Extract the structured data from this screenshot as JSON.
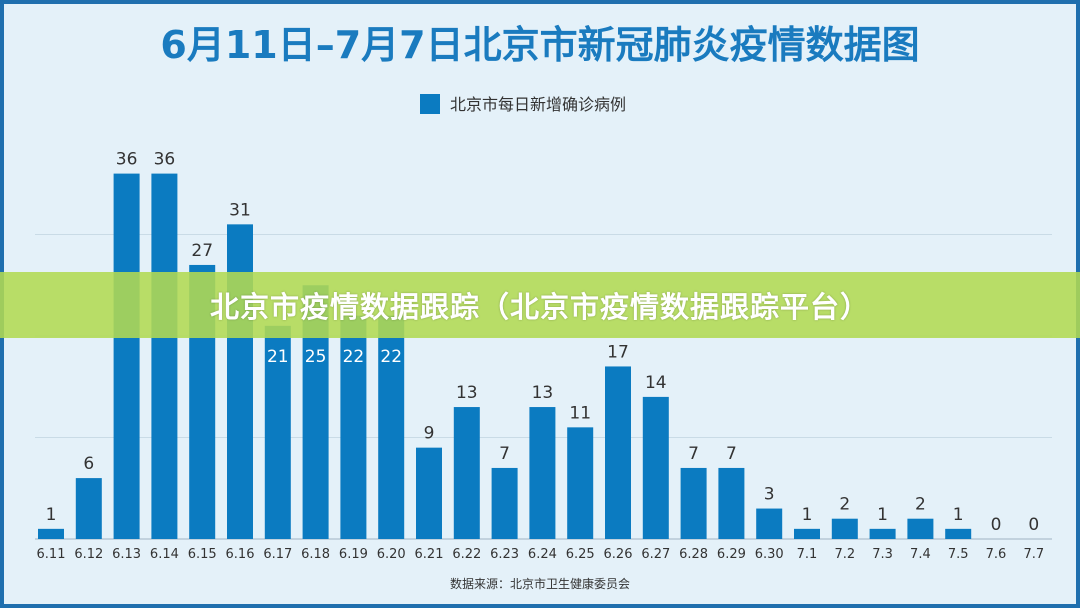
{
  "chart_data": {
    "type": "bar",
    "title": "6月11日–7月7日北京市新冠肺炎疫情数据图",
    "legend": [
      "北京市每日新增确诊病例"
    ],
    "legend_position": "top-center",
    "categories": [
      "6.11",
      "6.12",
      "6.13",
      "6.14",
      "6.15",
      "6.16",
      "6.17",
      "6.18",
      "6.19",
      "6.20",
      "6.21",
      "6.22",
      "6.23",
      "6.24",
      "6.25",
      "6.26",
      "6.27",
      "6.28",
      "6.29",
      "6.30",
      "7.1",
      "7.2",
      "7.3",
      "7.4",
      "7.5",
      "7.6",
      "7.7"
    ],
    "values": [
      1,
      6,
      36,
      36,
      27,
      31,
      21,
      25,
      22,
      22,
      9,
      13,
      7,
      13,
      11,
      17,
      14,
      7,
      7,
      3,
      1,
      2,
      1,
      2,
      1,
      0,
      0
    ],
    "ylim": [
      0,
      40
    ],
    "grid": true,
    "source": "数据来源：北京市卫生健康委员会",
    "colors": {
      "bar": "#0b7bc1",
      "title": "#1a7bbf",
      "background": "#e4f1f9"
    }
  },
  "banner": {
    "text": "北京市疫情数据跟踪（北京市疫情数据跟踪平台）"
  }
}
